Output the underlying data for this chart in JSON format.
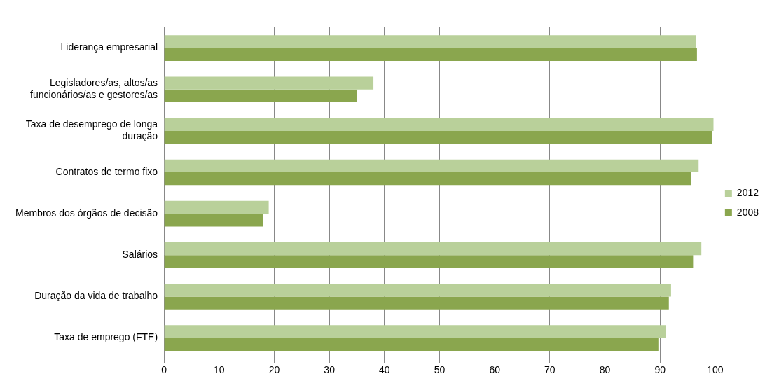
{
  "chart_data": {
    "type": "bar",
    "orientation": "horizontal",
    "categories": [
      "Liderança empresarial",
      "Legisladores/as, altos/as funcionários/as e gestores/as",
      "Taxa de desemprego de longa duração",
      "Contratos de termo fixo",
      "Membros dos órgãos de decisão",
      "Salários",
      "Duração da vida de trabalho",
      "Taxa de emprego (FTE)"
    ],
    "series": [
      {
        "name": "2012",
        "color": "#b9d09a",
        "values": [
          96.5,
          38,
          99.7,
          97,
          19,
          97.5,
          92,
          91
        ]
      },
      {
        "name": "2008",
        "color": "#8aa64e",
        "values": [
          96.7,
          35,
          99.5,
          95.6,
          18,
          96,
          91.6,
          89.7
        ]
      }
    ],
    "xlim": [
      0,
      100
    ],
    "xticks": [
      0,
      10,
      20,
      30,
      40,
      50,
      60,
      70,
      80,
      90,
      100
    ],
    "grid": "x",
    "legend": "right"
  }
}
